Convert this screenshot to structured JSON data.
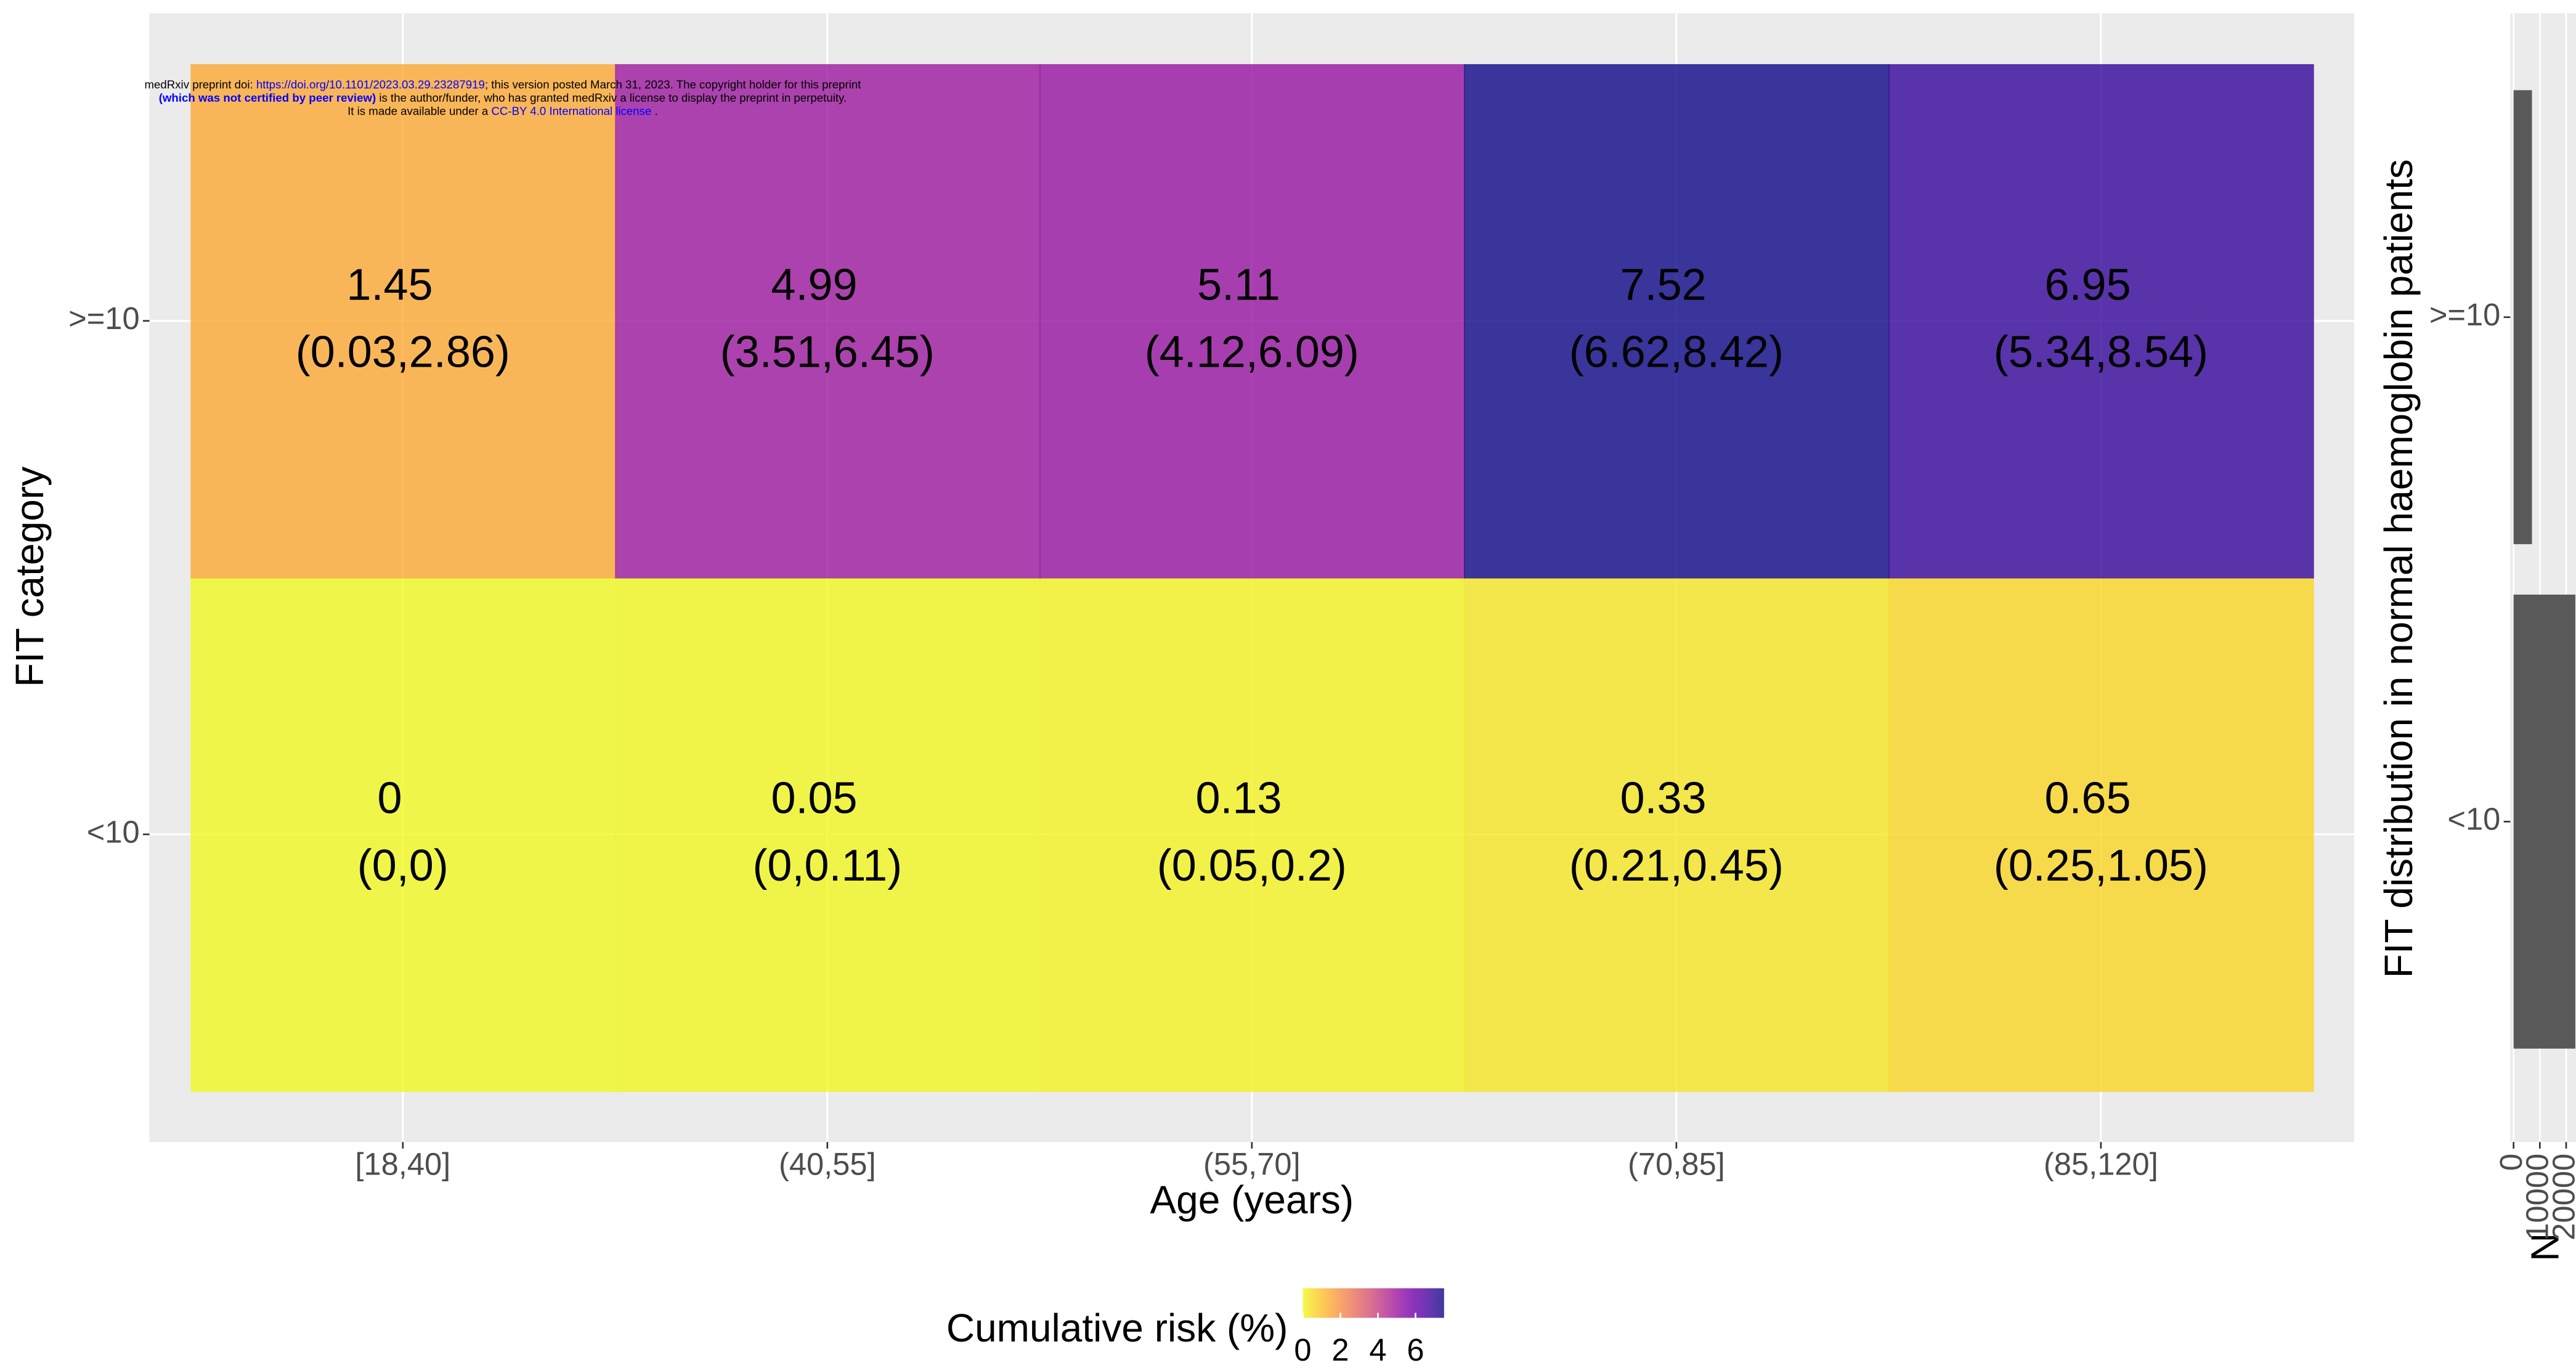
{
  "chart_data": [
    {
      "type": "heatmap",
      "x_label": "Age (years)",
      "y_label": "FIT category",
      "categories": [
        "[18,40]",
        "(40,55]",
        "(55,70]",
        "(70,85]",
        "(85,120]"
      ],
      "y_categories": [
        "<10",
        ">=10"
      ],
      "z": [
        [
          0,
          0.05,
          0.13,
          0.33,
          0.65
        ],
        [
          1.45,
          4.99,
          5.11,
          7.52,
          6.95
        ]
      ],
      "ci_labels": [
        [
          "(0,0)",
          "(0,0.11)",
          "(0.05,0.2)",
          "(0.21,0.45)",
          "(0.25,1.05)"
        ],
        [
          "(0.03,2.86)",
          "(3.51,6.45)",
          "(4.12,6.09)",
          "(6.62,8.42)",
          "(5.34,8.54)"
        ]
      ],
      "colorbar_title": "Cumulative risk (%)",
      "clim": [
        0,
        7.52
      ],
      "cticks": [
        0,
        2,
        4,
        6
      ],
      "colorscale": [
        "#f0f921",
        "#fcce25",
        "#fca636",
        "#f2844b",
        "#e16462",
        "#cc4778",
        "#b12a90",
        "#8f0da4",
        "#6a00a8",
        "#41049d",
        "#0d0887"
      ],
      "grid": true
    },
    {
      "type": "hbar",
      "x_label": "N",
      "y_label": "FIT distribution in normal haemoglobin patients",
      "categories": [
        "<10",
        ">=10"
      ],
      "values": [
        23500,
        7000
      ],
      "color": "#595959",
      "xlim": [
        -1250,
        23750
      ],
      "xticks": [
        0,
        10000,
        20000
      ],
      "grid": true
    }
  ],
  "watermark": [
    [
      {
        "text": "medRxiv preprint doi: ",
        "color": "#000000"
      },
      {
        "text": "https://doi.org/10.1101/2023.03.29.23287919",
        "color": "#0000ff"
      },
      {
        "text": "; this version posted March 31, 2023. The copyright holder for this preprint",
        "color": "#000000"
      }
    ],
    [
      {
        "text": "(which was not certified by peer review)",
        "color": "#0000ff",
        "weight": "bold"
      },
      {
        "text": " is the author/funder, who has granted medRxiv a license to display the preprint in perpetuity.",
        "color": "#000000"
      }
    ],
    [
      {
        "text": "It is made available under a ",
        "color": "#000000"
      },
      {
        "text": "CC-BY 4.0 International license",
        "color": "#0000ff"
      },
      {
        "text": " .",
        "color": "#000000"
      }
    ]
  ]
}
